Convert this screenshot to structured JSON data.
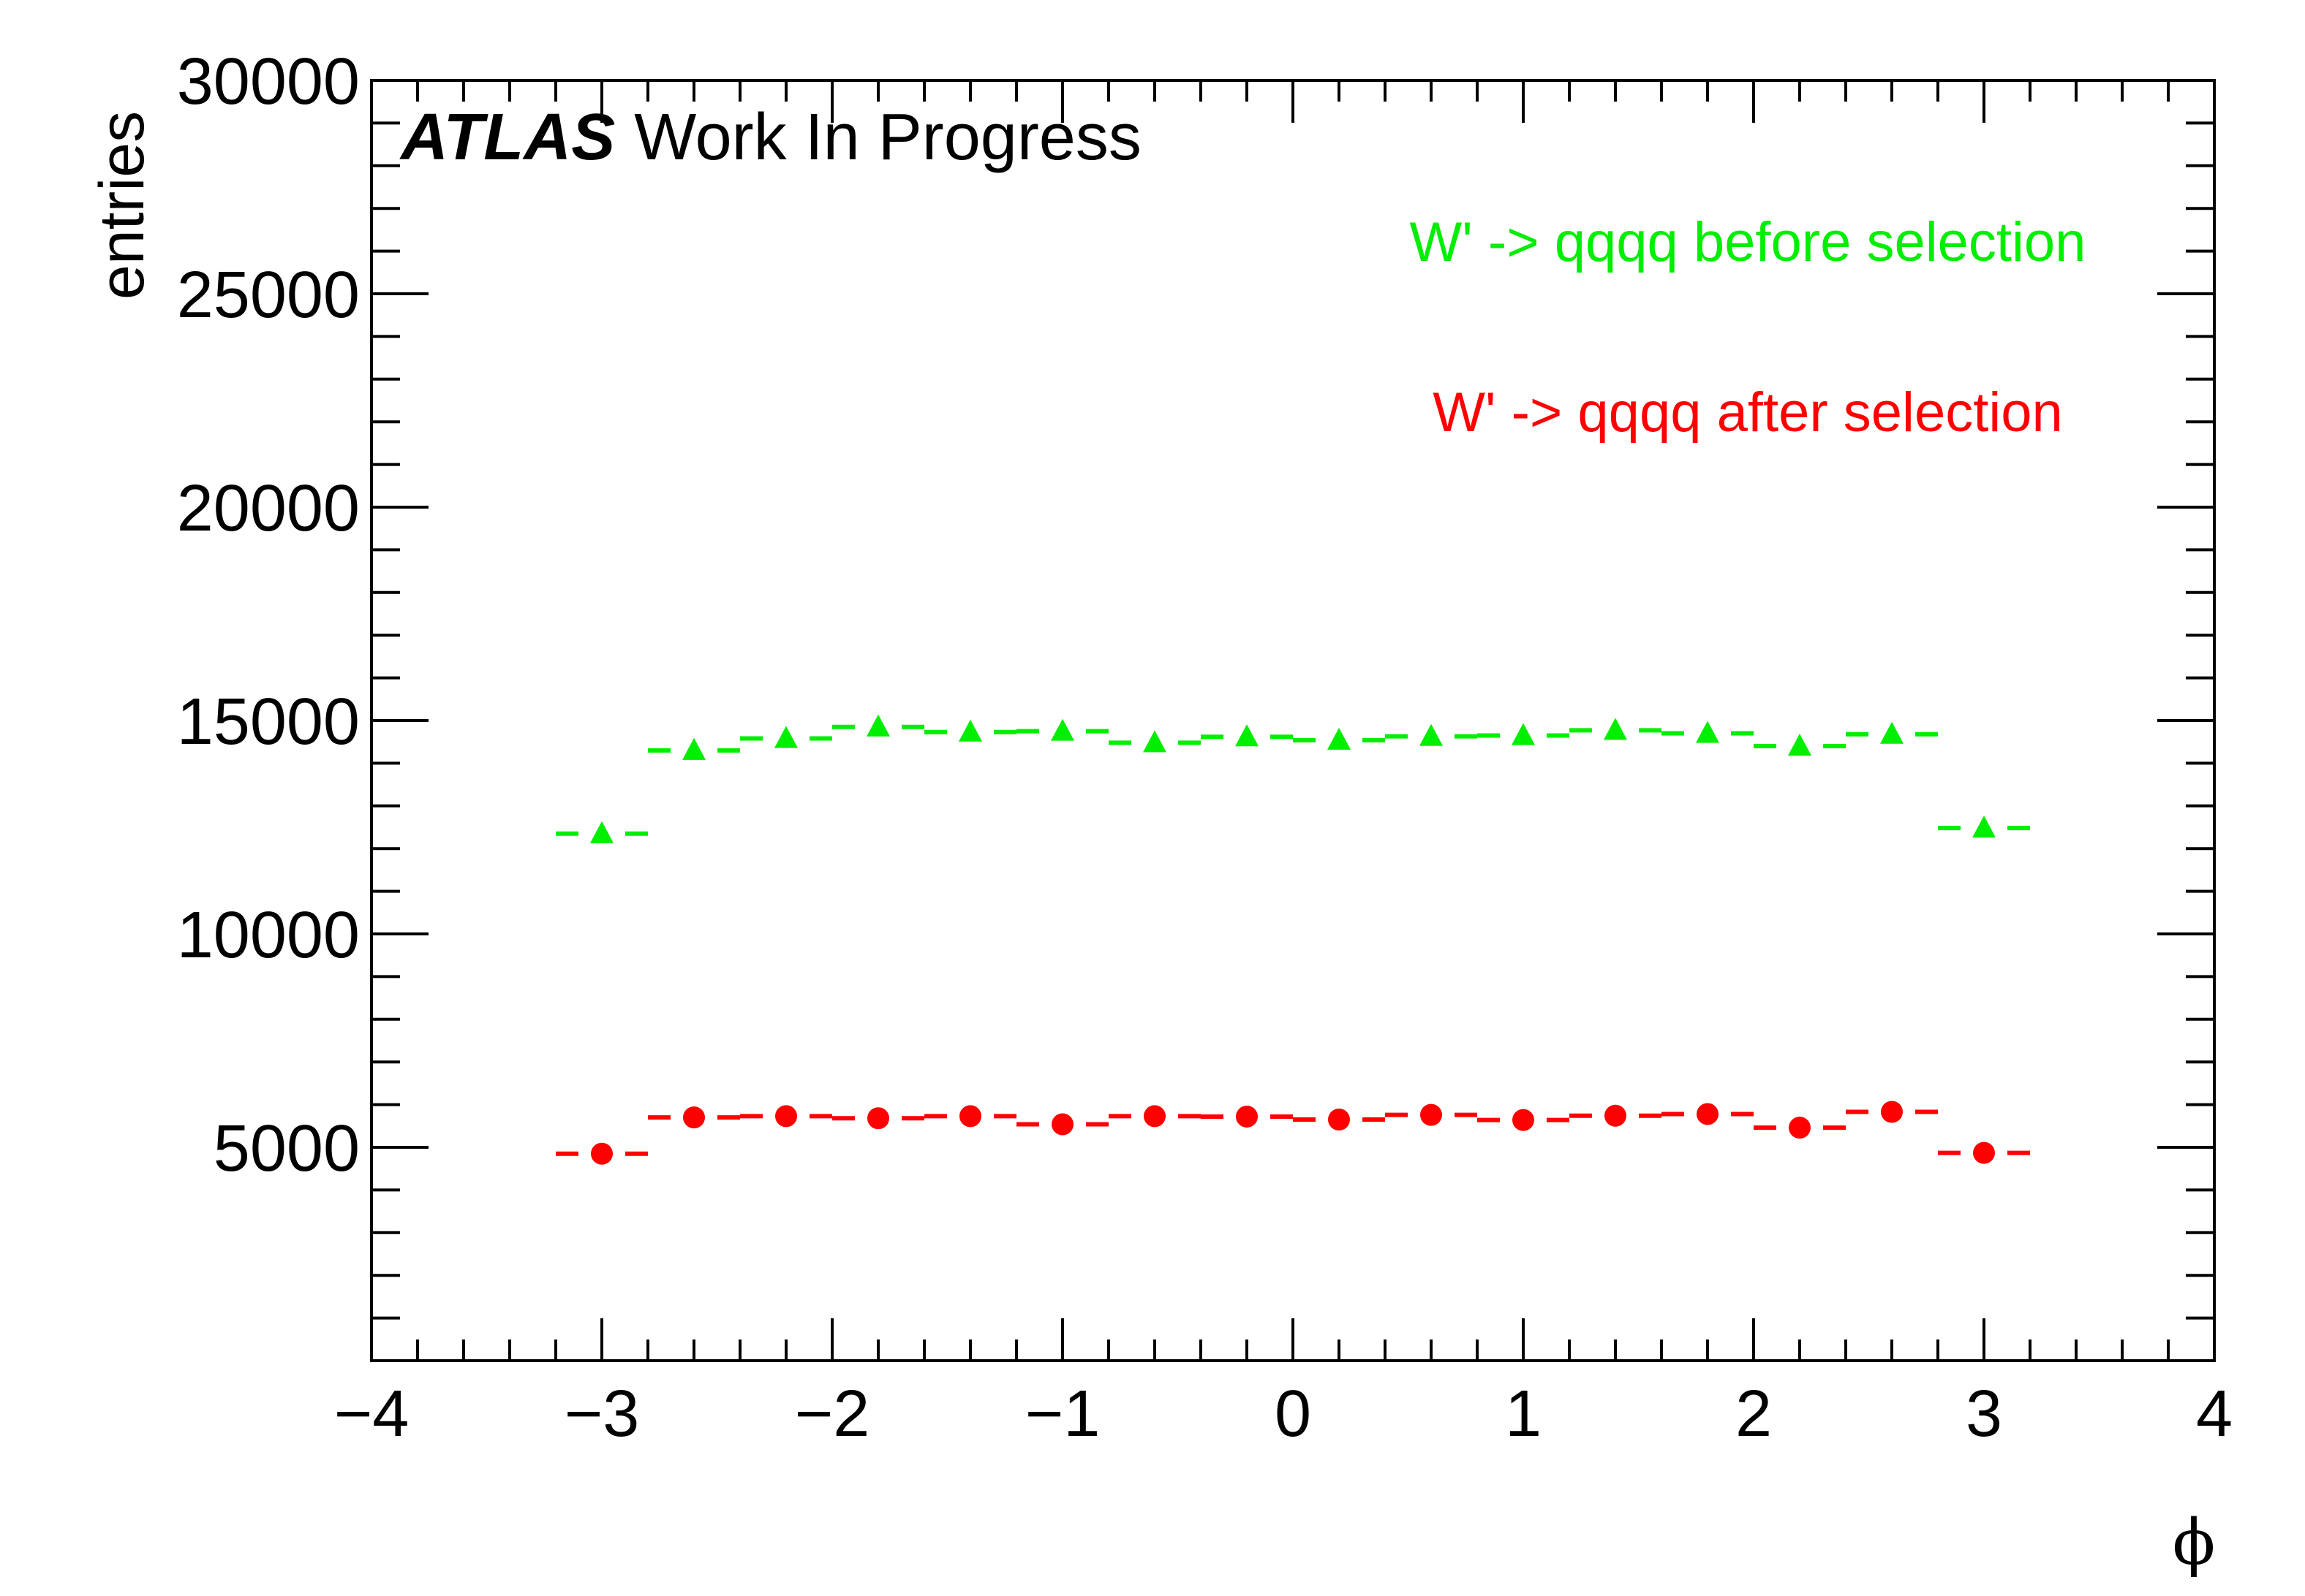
{
  "chart_data": {
    "type": "scatter",
    "ylabel": "entries",
    "xlabel": "ϕ",
    "xlim": [
      -4,
      4
    ],
    "ylim": [
      0,
      30000
    ],
    "x_ticks": [
      -4,
      -3,
      -2,
      -1,
      0,
      1,
      2,
      3,
      4
    ],
    "x_tick_labels": [
      "−4",
      "−3",
      "−2",
      "−1",
      "0",
      "1",
      "2",
      "3",
      "4"
    ],
    "y_ticks": [
      5000,
      10000,
      15000,
      20000,
      25000,
      30000
    ],
    "y_tick_labels": [
      "5000",
      "10000",
      "15000",
      "20000",
      "25000",
      "30000"
    ],
    "bin_width": 0.4,
    "x": [
      -3.0,
      -2.6,
      -2.2,
      -1.8,
      -1.4,
      -1.0,
      -0.6,
      -0.2,
      0.2,
      0.6,
      1.0,
      1.4,
      1.8,
      2.2,
      2.6,
      3.0
    ],
    "series": [
      {
        "name": "W' -> qqqq before selection",
        "color": "#00ee00",
        "marker": "triangle",
        "values": [
          12350,
          14300,
          14580,
          14850,
          14730,
          14750,
          14480,
          14620,
          14540,
          14630,
          14650,
          14770,
          14700,
          14400,
          14680,
          12480
        ]
      },
      {
        "name": "W' -> qqqq after selection",
        "color": "#ff0000",
        "marker": "circle",
        "values": [
          4850,
          5700,
          5730,
          5680,
          5730,
          5540,
          5730,
          5720,
          5650,
          5760,
          5640,
          5740,
          5780,
          5460,
          5830,
          4870
        ]
      }
    ],
    "annotations": {
      "experiment": "ATLAS",
      "status": "Work In Progress"
    }
  }
}
